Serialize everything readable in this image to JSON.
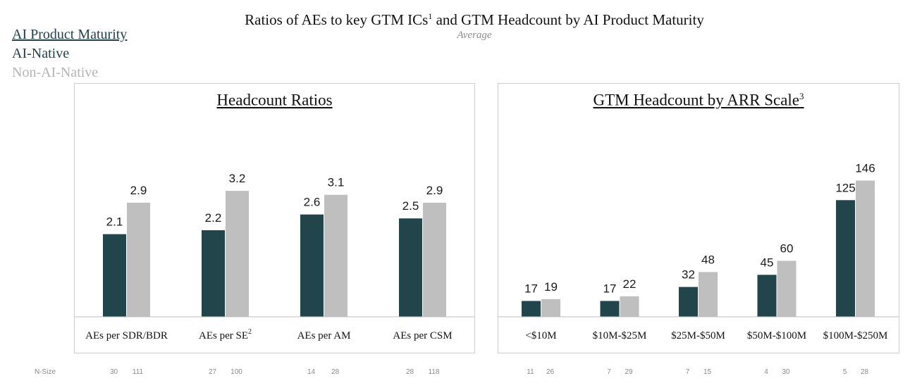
{
  "header": {
    "title": "Ratios of AEs to key GTM ICs",
    "title_sup": "1",
    "title_rest": " and GTM Headcount by AI Product Maturity",
    "subtitle": "Average"
  },
  "legend": {
    "title": "AI Product Maturity",
    "items": [
      {
        "label": "AI-Native",
        "color": "#22444b"
      },
      {
        "label": "Non-AI-Native",
        "color": "#bfbfbf"
      }
    ]
  },
  "nsize_label": "N-Size",
  "colors": {
    "ai_native": "#22444b",
    "non_ai_native": "#bfbfbf",
    "axis": "#bfbfbf"
  },
  "chart_data": [
    {
      "type": "bar",
      "title": "Headcount Ratios",
      "title_sup": "",
      "categories": [
        "AEs per SDR/BDR",
        "AEs per SE",
        "AEs per AM",
        "AEs per CSM"
      ],
      "category_sups": [
        "",
        "2",
        "",
        ""
      ],
      "series": [
        {
          "name": "AI-Native",
          "values": [
            2.1,
            2.2,
            2.6,
            2.5
          ],
          "labels": [
            "2.1",
            "2.2",
            "2.6",
            "2.5"
          ]
        },
        {
          "name": "Non-AI-Native",
          "values": [
            2.9,
            3.2,
            3.1,
            2.9
          ],
          "labels": [
            "2.9",
            "3.2",
            "3.1",
            "2.9"
          ]
        }
      ],
      "n_size": [
        [
          "30",
          "111"
        ],
        [
          "27",
          "100"
        ],
        [
          "14",
          "28"
        ],
        [
          "28",
          "118"
        ]
      ],
      "ylim": [
        0,
        4.15
      ],
      "xlabel": "",
      "ylabel": ""
    },
    {
      "type": "bar",
      "title": "GTM Headcount by ARR Scale",
      "title_sup": "3",
      "categories": [
        "<$10M",
        "$10M-$25M",
        "$25M-$50M",
        "$50M-$100M",
        "$100M-$250M"
      ],
      "category_sups": [
        "",
        "",
        "",
        "",
        ""
      ],
      "series": [
        {
          "name": "AI-Native",
          "values": [
            17,
            17,
            32,
            45,
            125
          ],
          "labels": [
            "17",
            "17",
            "32",
            "45",
            "125"
          ]
        },
        {
          "name": "Non-AI-Native",
          "values": [
            19,
            22,
            48,
            60,
            146
          ],
          "labels": [
            "19",
            "22",
            "48",
            "60",
            "146"
          ]
        }
      ],
      "n_size": [
        [
          "11",
          "26"
        ],
        [
          "7",
          "29"
        ],
        [
          "7",
          "15"
        ],
        [
          "4",
          "30"
        ],
        [
          "5",
          "28"
        ]
      ],
      "ylim": [
        0,
        175
      ],
      "xlabel": "",
      "ylabel": ""
    }
  ]
}
